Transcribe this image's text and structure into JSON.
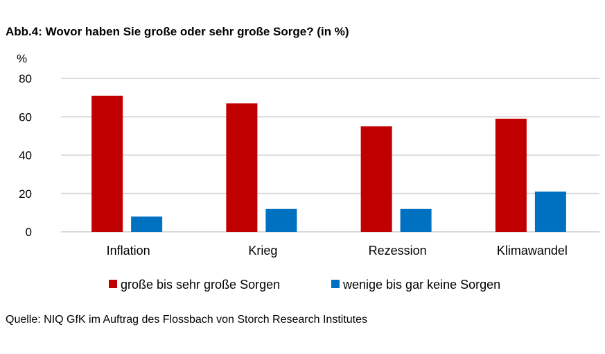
{
  "title": "Abb.4: Wovor haben Sie große oder sehr große Sorge? (in %)",
  "source": "Quelle: NIQ GfK im Auftrag des Flossbach von Storch Research Institutes",
  "chart_data": {
    "type": "bar",
    "title": "Abb.4: Wovor haben Sie große oder sehr große Sorge? (in %)",
    "ylabel": "%",
    "xlabel": "",
    "ylim": [
      0,
      80
    ],
    "yticks": [
      "0",
      "20",
      "40",
      "60",
      "80"
    ],
    "grid": true,
    "legend": "bottom",
    "categories": [
      "Inflation",
      "Krieg",
      "Rezession",
      "Klimawandel"
    ],
    "series": [
      {
        "name": "große bis sehr große Sorgen",
        "color": "#C00000",
        "values": [
          71,
          67,
          55,
          59
        ]
      },
      {
        "name": "wenige bis gar keine Sorgen",
        "color": "#0070C0",
        "values": [
          8,
          12,
          12,
          21
        ]
      }
    ]
  }
}
